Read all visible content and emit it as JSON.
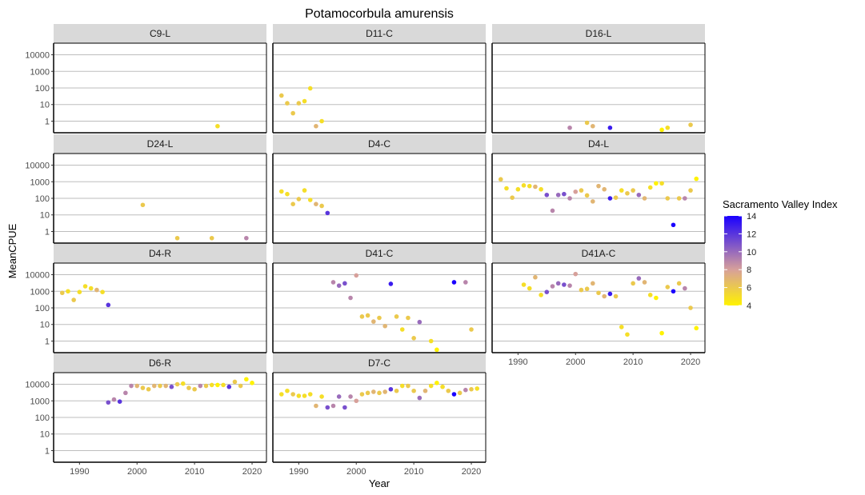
{
  "chart_data": {
    "type": "scatter",
    "title": "Potamocorbula amurensis",
    "xlabel": "Year",
    "ylabel": "MeanCPUE",
    "y_scale": "log10",
    "xlim": [
      1985.5,
      2022.5
    ],
    "ylim": [
      0.2,
      50000
    ],
    "x_ticks": [
      1990,
      2000,
      2010,
      2020
    ],
    "y_ticks": [
      1,
      10,
      100,
      1000,
      10000
    ],
    "y_tick_labels": [
      "1",
      "10",
      "100",
      "1000",
      "10000"
    ],
    "grid": true,
    "layout": "facet-grid-4x3",
    "legend": {
      "title": "Sacramento Valley Index",
      "position": "right",
      "range": [
        4,
        14
      ],
      "ticks": [
        4,
        6,
        8,
        10,
        12,
        14
      ],
      "low_color": "#FFF200",
      "mid_color": "#D7A09A",
      "high_color": "#1A00FF"
    },
    "panels": [
      {
        "name": "C9-L",
        "points": [
          [
            2014,
            0.5,
            5
          ]
        ]
      },
      {
        "name": "D11-C",
        "points": [
          [
            1987,
            35,
            6
          ],
          [
            1988,
            12,
            6
          ],
          [
            1989,
            3,
            6
          ],
          [
            1990,
            12,
            6
          ],
          [
            1991,
            16,
            5
          ],
          [
            1992,
            95,
            5
          ],
          [
            1993,
            0.5,
            7
          ],
          [
            1994,
            1,
            5
          ]
        ]
      },
      {
        "name": "D16-L",
        "points": [
          [
            1999,
            0.4,
            9
          ],
          [
            2002,
            0.8,
            6
          ],
          [
            2003,
            0.5,
            7
          ],
          [
            2006,
            0.4,
            13
          ],
          [
            2015,
            0.3,
            4
          ],
          [
            2016,
            0.4,
            5
          ],
          [
            2020,
            0.6,
            6
          ]
        ]
      },
      {
        "name": "D24-L",
        "points": [
          [
            2001,
            40,
            6
          ],
          [
            2007,
            0.4,
            6
          ],
          [
            2013,
            0.4,
            6
          ],
          [
            2019,
            0.4,
            9
          ]
        ]
      },
      {
        "name": "D4-C",
        "points": [
          [
            1987,
            260,
            5
          ],
          [
            1988,
            180,
            5
          ],
          [
            1989,
            45,
            6
          ],
          [
            1990,
            90,
            6
          ],
          [
            1991,
            300,
            5
          ],
          [
            1992,
            80,
            5
          ],
          [
            1993,
            45,
            7
          ],
          [
            1994,
            35,
            6
          ],
          [
            1995,
            13,
            12
          ]
        ]
      },
      {
        "name": "D4-L",
        "points": [
          [
            1987,
            1400,
            6
          ],
          [
            1988,
            400,
            5
          ],
          [
            1989,
            110,
            6
          ],
          [
            1990,
            350,
            5
          ],
          [
            1991,
            600,
            5
          ],
          [
            1992,
            550,
            5
          ],
          [
            1993,
            500,
            7
          ],
          [
            1994,
            350,
            5
          ],
          [
            1995,
            160,
            11
          ],
          [
            1996,
            18,
            9
          ],
          [
            1997,
            160,
            10
          ],
          [
            1998,
            180,
            11
          ],
          [
            1999,
            100,
            9
          ],
          [
            2000,
            250,
            8
          ],
          [
            2001,
            300,
            6
          ],
          [
            2002,
            150,
            6
          ],
          [
            2003,
            65,
            7
          ],
          [
            2004,
            550,
            7
          ],
          [
            2005,
            350,
            7
          ],
          [
            2006,
            100,
            13
          ],
          [
            2007,
            110,
            6
          ],
          [
            2008,
            300,
            5
          ],
          [
            2009,
            200,
            6
          ],
          [
            2010,
            300,
            6
          ],
          [
            2011,
            160,
            10
          ],
          [
            2012,
            100,
            7
          ],
          [
            2013,
            450,
            5
          ],
          [
            2014,
            800,
            4
          ],
          [
            2015,
            800,
            5
          ],
          [
            2016,
            100,
            6
          ],
          [
            2017,
            2.5,
            14
          ],
          [
            2018,
            100,
            6
          ],
          [
            2019,
            100,
            9
          ],
          [
            2020,
            300,
            6
          ],
          [
            2021,
            1500,
            4
          ]
        ]
      },
      {
        "name": "D4-R",
        "points": [
          [
            1987,
            800,
            6
          ],
          [
            1988,
            1000,
            5
          ],
          [
            1989,
            300,
            6
          ],
          [
            1990,
            900,
            5
          ],
          [
            1991,
            2000,
            5
          ],
          [
            1992,
            1500,
            5
          ],
          [
            1993,
            1200,
            7
          ],
          [
            1994,
            900,
            5
          ],
          [
            1995,
            150,
            12
          ]
        ]
      },
      {
        "name": "D41-C",
        "points": [
          [
            1996,
            3500,
            9
          ],
          [
            1997,
            2200,
            10
          ],
          [
            1998,
            3000,
            11
          ],
          [
            1999,
            400,
            9
          ],
          [
            2000,
            9000,
            8
          ],
          [
            2001,
            30,
            6
          ],
          [
            2002,
            35,
            6
          ],
          [
            2003,
            15,
            7
          ],
          [
            2004,
            25,
            6
          ],
          [
            2005,
            8,
            7
          ],
          [
            2006,
            2800,
            13
          ],
          [
            2007,
            30,
            6
          ],
          [
            2008,
            5,
            5
          ],
          [
            2009,
            25,
            6
          ],
          [
            2010,
            1.5,
            6
          ],
          [
            2011,
            14,
            10
          ],
          [
            2013,
            1,
            5
          ],
          [
            2014,
            0.3,
            4
          ],
          [
            2017,
            3500,
            14
          ],
          [
            2019,
            3500,
            9
          ],
          [
            2020,
            5,
            6
          ]
        ]
      },
      {
        "name": "D41A-C",
        "points": [
          [
            1991,
            2500,
            5
          ],
          [
            1992,
            1500,
            5
          ],
          [
            1993,
            7000,
            7
          ],
          [
            1994,
            600,
            5
          ],
          [
            1995,
            900,
            11
          ],
          [
            1996,
            2000,
            9
          ],
          [
            1997,
            3000,
            10
          ],
          [
            1998,
            2500,
            11
          ],
          [
            1999,
            2200,
            9
          ],
          [
            2000,
            11000,
            8
          ],
          [
            2001,
            1200,
            6
          ],
          [
            2002,
            1400,
            6
          ],
          [
            2003,
            3000,
            7
          ],
          [
            2004,
            800,
            6
          ],
          [
            2005,
            500,
            7
          ],
          [
            2006,
            700,
            13
          ],
          [
            2007,
            500,
            6
          ],
          [
            2008,
            7,
            5
          ],
          [
            2009,
            2.5,
            5
          ],
          [
            2010,
            3000,
            6
          ],
          [
            2011,
            6000,
            10
          ],
          [
            2012,
            3500,
            7
          ],
          [
            2013,
            600,
            5
          ],
          [
            2014,
            400,
            4
          ],
          [
            2015,
            3,
            4
          ],
          [
            2016,
            1800,
            6
          ],
          [
            2017,
            1000,
            14
          ],
          [
            2018,
            3000,
            6
          ],
          [
            2019,
            1500,
            9
          ],
          [
            2020,
            100,
            6
          ],
          [
            2021,
            6,
            4
          ]
        ]
      },
      {
        "name": "D6-R",
        "points": [
          [
            1995,
            800,
            11
          ],
          [
            1996,
            1200,
            9
          ],
          [
            1997,
            900,
            12
          ],
          [
            1998,
            3000,
            9
          ],
          [
            1999,
            8000,
            9
          ],
          [
            2000,
            8000,
            7
          ],
          [
            2001,
            6000,
            6
          ],
          [
            2002,
            5000,
            6
          ],
          [
            2003,
            8000,
            7
          ],
          [
            2004,
            8000,
            6
          ],
          [
            2005,
            8000,
            7
          ],
          [
            2006,
            7000,
            11
          ],
          [
            2007,
            10000,
            6
          ],
          [
            2008,
            11000,
            5
          ],
          [
            2009,
            6000,
            6
          ],
          [
            2010,
            5000,
            6
          ],
          [
            2011,
            8000,
            9
          ],
          [
            2012,
            8000,
            6
          ],
          [
            2013,
            9000,
            5
          ],
          [
            2014,
            9000,
            4
          ],
          [
            2015,
            9000,
            5
          ],
          [
            2016,
            7000,
            12
          ],
          [
            2017,
            14000,
            6
          ],
          [
            2018,
            8000,
            6
          ],
          [
            2019,
            20000,
            4
          ],
          [
            2020,
            12000,
            4
          ]
        ]
      },
      {
        "name": "D7-C",
        "points": [
          [
            1987,
            2500,
            5
          ],
          [
            1988,
            4000,
            5
          ],
          [
            1989,
            2500,
            6
          ],
          [
            1990,
            2000,
            5
          ],
          [
            1991,
            2000,
            5
          ],
          [
            1992,
            2500,
            5
          ],
          [
            1993,
            500,
            7
          ],
          [
            1994,
            1800,
            5
          ],
          [
            1995,
            400,
            11
          ],
          [
            1996,
            500,
            9
          ],
          [
            1997,
            1800,
            10
          ],
          [
            1998,
            400,
            11
          ],
          [
            1999,
            1800,
            9
          ],
          [
            2000,
            1000,
            8
          ],
          [
            2001,
            2500,
            6
          ],
          [
            2002,
            3000,
            6
          ],
          [
            2003,
            3500,
            7
          ],
          [
            2004,
            3000,
            6
          ],
          [
            2005,
            3500,
            7
          ],
          [
            2006,
            5000,
            12
          ],
          [
            2007,
            4000,
            6
          ],
          [
            2008,
            8000,
            5
          ],
          [
            2009,
            8000,
            6
          ],
          [
            2010,
            4000,
            6
          ],
          [
            2011,
            1500,
            10
          ],
          [
            2012,
            4000,
            7
          ],
          [
            2013,
            8000,
            5
          ],
          [
            2014,
            12000,
            4
          ],
          [
            2015,
            7000,
            5
          ],
          [
            2016,
            4000,
            6
          ],
          [
            2017,
            2500,
            14
          ],
          [
            2018,
            3000,
            6
          ],
          [
            2019,
            4500,
            9
          ],
          [
            2020,
            5000,
            6
          ],
          [
            2021,
            5500,
            5
          ]
        ]
      }
    ]
  }
}
